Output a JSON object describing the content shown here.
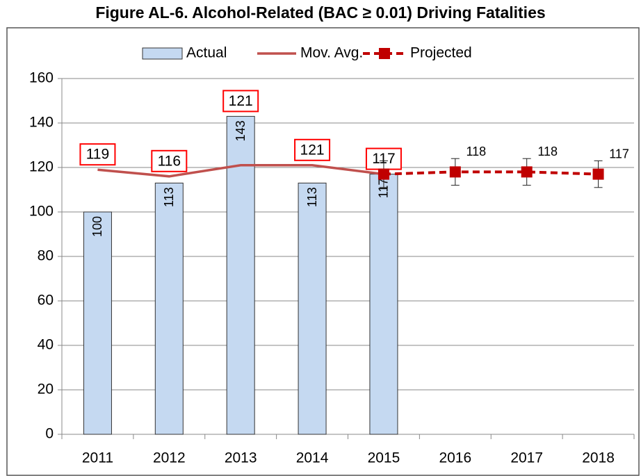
{
  "chart_data": {
    "type": "bar",
    "title": "Figure AL-6. Alcohol-Related (BAC ≥ 0.01) Driving Fatalities",
    "categories": [
      "2011",
      "2012",
      "2013",
      "2014",
      "2015",
      "2016",
      "2017",
      "2018"
    ],
    "series": [
      {
        "name": "Actual",
        "type": "bar",
        "color": "#c5d9f1",
        "values": [
          100,
          113,
          143,
          113,
          117,
          null,
          null,
          null
        ]
      },
      {
        "name": "Mov. Avg.",
        "type": "line",
        "color": "#c0504d",
        "values": [
          119,
          116,
          121,
          121,
          117,
          null,
          null,
          null
        ]
      },
      {
        "name": "Projected",
        "type": "line",
        "dashed": true,
        "marker": "square",
        "color": "#c00000",
        "values": [
          null,
          null,
          null,
          null,
          117,
          118,
          118,
          117
        ],
        "errors": [
          null,
          null,
          null,
          null,
          6,
          6,
          6,
          6
        ]
      }
    ],
    "ylim": [
      0,
      160
    ],
    "yticks": [
      0,
      20,
      40,
      60,
      80,
      100,
      120,
      140,
      160
    ],
    "grid": true,
    "legend": "top"
  }
}
